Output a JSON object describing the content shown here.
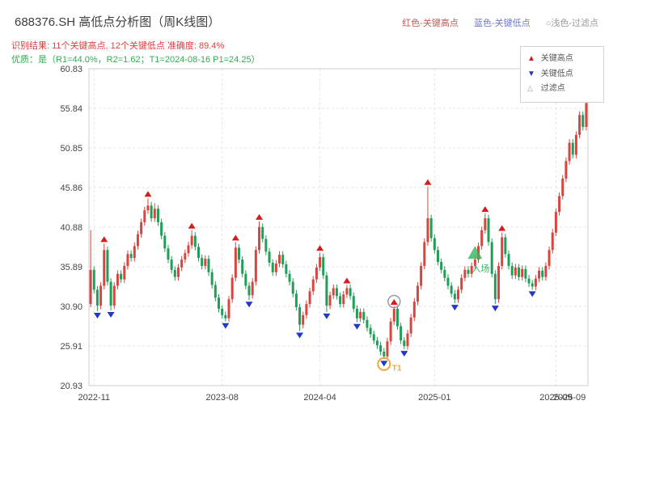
{
  "header": {
    "title": "688376.SH 高低点分析图（周K线图）",
    "legend_high": "红色-关键高点",
    "legend_low": "蓝色-关键低点",
    "legend_filtered": "○浅色-过滤点",
    "result_line": "识别结果: 11个关键高点, 12个关键低点  准确度: 89.4%",
    "quality_line": "优质：是（R1=44.0%，R2=1.62；T1=2024-08-16 P1=24.25）"
  },
  "legend_box": {
    "high": "关键高点",
    "low": "关键低点",
    "filtered": "过滤点"
  },
  "colors": {
    "up": "#d8453e",
    "down": "#1f9e57",
    "marker_high": "#d61b1b",
    "marker_low": "#2438c8",
    "t1": "#eda73c",
    "entry": "#33b45c",
    "grid": "#e4e4e4",
    "frame": "#cccccc"
  },
  "chart_data": {
    "type": "candlestick",
    "title": "688376.SH 高低点分析图（周K线图）",
    "xlabel": "",
    "ylabel": "",
    "ylim": [
      20.93,
      60.83
    ],
    "y_ticks": [
      "20.93",
      "25.91",
      "30.90",
      "35.89",
      "40.88",
      "45.86",
      "50.85",
      "55.84",
      "60.83"
    ],
    "x_ticks": [
      {
        "label": "2022-11",
        "index": 1
      },
      {
        "label": "2023-08",
        "index": 39
      },
      {
        "label": "2024-04",
        "index": 68
      },
      {
        "label": "2025-01",
        "index": 102
      },
      {
        "label": "2025-09",
        "index": 138
      },
      {
        "label": "2025-09",
        "index": 142,
        "nogrid": true
      }
    ],
    "first_open": 31.2,
    "default_wick": 0.45,
    "closes": [
      35.5,
      33.0,
      31.0,
      33.5,
      38.0,
      34.0,
      31.0,
      33.5,
      35.0,
      34.3,
      36.0,
      37.5,
      37.0,
      38.5,
      40.0,
      41.5,
      43.0,
      43.6,
      42.0,
      43.2,
      41.5,
      39.8,
      38.2,
      36.8,
      35.5,
      34.6,
      35.8,
      36.8,
      37.6,
      38.6,
      39.8,
      38.4,
      37.0,
      36.0,
      36.9,
      35.2,
      33.6,
      32.0,
      30.6,
      29.8,
      29.4,
      31.8,
      34.5,
      38.3,
      36.8,
      35.0,
      33.5,
      32.3,
      34.0,
      38.0,
      40.9,
      39.4,
      37.8,
      36.4,
      35.2,
      36.3,
      37.4,
      36.2,
      35.0,
      34.0,
      32.5,
      30.8,
      28.6,
      29.8,
      31.2,
      32.8,
      34.3,
      35.8,
      37.1,
      34.8,
      31.0,
      32.3,
      33.2,
      32.2,
      31.2,
      32.4,
      33.2,
      32.2,
      30.6,
      29.4,
      30.2,
      29.2,
      28.2,
      27.4,
      26.6,
      26.0,
      25.2,
      24.6,
      26.5,
      29.0,
      30.6,
      28.4,
      26.6,
      25.9,
      27.5,
      29.5,
      31.5,
      33.5,
      36.0,
      39.0,
      42.0,
      39.5,
      38.0,
      36.5,
      35.5,
      34.5,
      33.5,
      32.5,
      31.8,
      33.0,
      34.5,
      35.5,
      35.0,
      36.0,
      36.8,
      38.5,
      40.5,
      42.0,
      39.0,
      35.0,
      31.8,
      36.0,
      39.6,
      37.5,
      36.0,
      34.8,
      35.8,
      34.6,
      35.6,
      34.4,
      33.8,
      33.4,
      34.4,
      35.4,
      34.6,
      36.0,
      38.0,
      40.2,
      42.8,
      44.8,
      47.0,
      49.2,
      51.5,
      50.0,
      52.5,
      55.0,
      53.5,
      56.5
    ],
    "high_overrides": {
      "0": 40.5,
      "4": 38.8,
      "17": 44.5,
      "19": 43.9,
      "30": 40.5,
      "43": 39.0,
      "50": 41.6,
      "68": 37.7,
      "76": 33.6,
      "90": 30.9,
      "100": 46.0,
      "117": 42.6,
      "122": 40.2,
      "147": 57.8
    },
    "low_overrides": {
      "0": 30.8,
      "2": 30.3,
      "6": 30.4,
      "40": 29.0,
      "47": 31.7,
      "62": 27.8,
      "70": 30.2,
      "79": 28.9,
      "87": 24.25,
      "93": 25.5,
      "108": 31.3,
      "120": 31.2,
      "131": 33.0
    },
    "key_highs": [
      [
        4,
        38.8
      ],
      [
        17,
        44.5
      ],
      [
        30,
        40.5
      ],
      [
        43,
        39.0
      ],
      [
        50,
        41.6
      ],
      [
        68,
        37.7
      ],
      [
        76,
        33.6
      ],
      [
        90,
        30.9
      ],
      [
        100,
        46.0
      ],
      [
        117,
        42.6
      ],
      [
        122,
        40.2
      ]
    ],
    "key_lows": [
      [
        2,
        30.3
      ],
      [
        6,
        30.4
      ],
      [
        40,
        29.0
      ],
      [
        47,
        31.7
      ],
      [
        62,
        27.8
      ],
      [
        70,
        30.2
      ],
      [
        79,
        28.9
      ],
      [
        87,
        24.25
      ],
      [
        93,
        25.5
      ],
      [
        108,
        31.3
      ],
      [
        120,
        31.2
      ],
      [
        131,
        33.0
      ]
    ],
    "t1": {
      "index": 87,
      "price": 24.25,
      "label": "T1"
    },
    "filtered_point": {
      "index": 90,
      "price": 30.9
    },
    "entry": {
      "index": 114,
      "price": 37.6,
      "label": "入场"
    }
  }
}
